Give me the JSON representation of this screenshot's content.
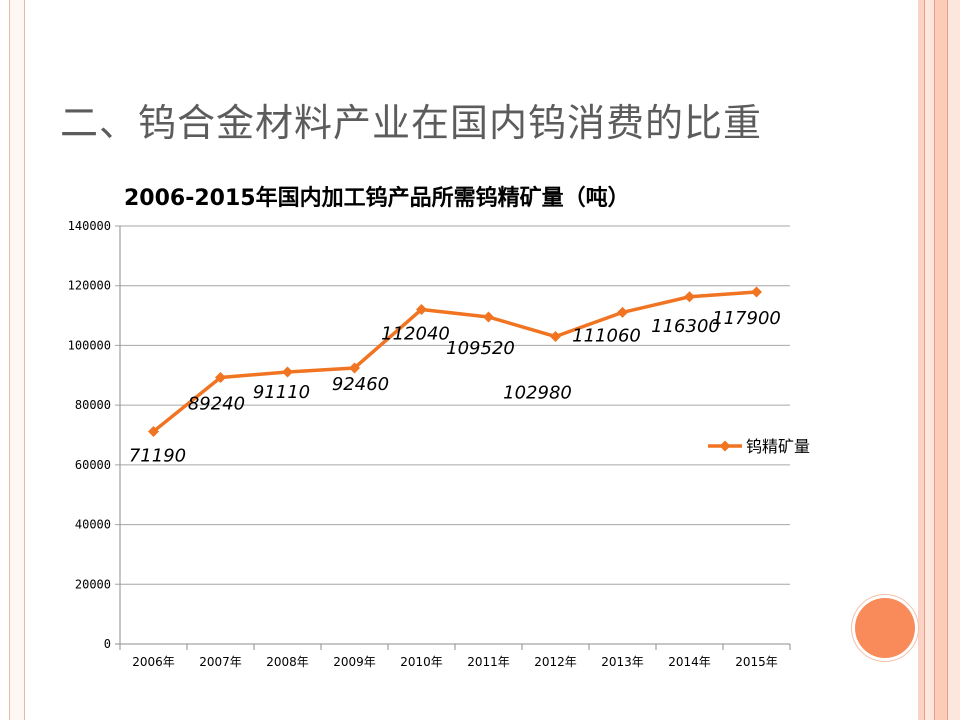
{
  "slide": {
    "title": "二、钨合金材料产业在国内钨消费的比重"
  },
  "theme": {
    "line_color": "#f07421",
    "accent_circle": "#f98b5b",
    "border_color": "#f0b7a6"
  },
  "chart_data": {
    "type": "line",
    "title": "2006-2015年国内加工钨产品所需钨精矿量（吨）",
    "xlabel": "",
    "ylabel": "",
    "categories": [
      "2006年",
      "2007年",
      "2008年",
      "2009年",
      "2010年",
      "2011年",
      "2012年",
      "2013年",
      "2014年",
      "2015年"
    ],
    "series": [
      {
        "name": "钨精矿量",
        "values": [
          71190,
          89240,
          91110,
          92460,
          112040,
          109520,
          102980,
          111060,
          116300,
          117900
        ],
        "data_labels": [
          "71190",
          "89240",
          "91110",
          "92460",
          "112040",
          "109520",
          "102980",
          "111060",
          "116300",
          "117900"
        ]
      }
    ],
    "ylim": [
      0,
      140000
    ],
    "yticks": [
      "0",
      "20000",
      "40000",
      "60000",
      "80000",
      "100000",
      "120000",
      "140000"
    ],
    "grid": true,
    "legend_position": "right",
    "marker": "diamond"
  }
}
